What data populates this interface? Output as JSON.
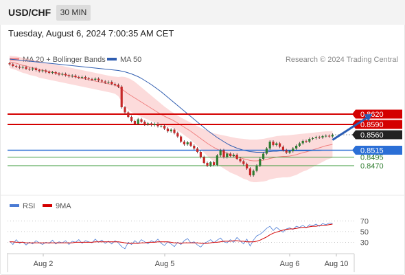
{
  "header": {
    "symbol": "USD/CHF",
    "timeframe": "30 MIN",
    "datetime": "Tuesday, August 6, 2024 7:00:35 AM CET"
  },
  "colors": {
    "resistance": "#d40000",
    "support": "#2b6fd6",
    "support_green": "#3a9a3a",
    "pivot": "#222222",
    "bollinger": "#f7a4a4",
    "ma20": "#f08080",
    "ma50": "#2f5db0",
    "rsi": "#4a7bd4",
    "rsi_ma": "#d40000",
    "candle_up": "#2e7d32",
    "candle_down": "#c62828",
    "arrow": "#2a5db4"
  },
  "chart_data": [
    {
      "type": "candlestick",
      "legend": [
        {
          "name": "MA 20 + Bollinger Bands",
          "color": "#f08080"
        },
        {
          "name": "MA 50",
          "color": "#2f5db0"
        }
      ],
      "watermark": "Research © 2024 Trading Central",
      "x_ticks": [
        "Aug 2",
        "Aug 5",
        "Aug 6",
        "Aug 10"
      ],
      "levels": [
        {
          "value": 0.862,
          "label": "0.8620",
          "kind": "resistance"
        },
        {
          "value": 0.859,
          "label": "0.8590",
          "kind": "resistance"
        },
        {
          "value": 0.856,
          "label": "0.8560",
          "kind": "pivot"
        },
        {
          "value": 0.8515,
          "label": "0.8515",
          "kind": "support"
        },
        {
          "value": 0.8495,
          "label": "0.8495",
          "kind": "support_green"
        },
        {
          "value": 0.847,
          "label": "0.8470",
          "kind": "support_green"
        }
      ],
      "ylim": [
        0.8384,
        0.8816
      ],
      "close": [
        0.8765,
        0.876,
        0.8758,
        0.8755,
        0.8757,
        0.8752,
        0.875,
        0.8753,
        0.8748,
        0.8745,
        0.8747,
        0.8743,
        0.874,
        0.8742,
        0.8738,
        0.8735,
        0.8737,
        0.8733,
        0.873,
        0.8732,
        0.8728,
        0.8726,
        0.8728,
        0.8724,
        0.8722,
        0.872,
        0.8723,
        0.8718,
        0.8715,
        0.8712,
        0.8714,
        0.8708,
        0.8705,
        0.87,
        0.864,
        0.8625,
        0.8612,
        0.86,
        0.8592,
        0.8605,
        0.8598,
        0.859,
        0.8593,
        0.8588,
        0.8592,
        0.8585,
        0.8586,
        0.8578,
        0.857,
        0.8575,
        0.8565,
        0.8555,
        0.854,
        0.8532,
        0.8538,
        0.8528,
        0.852,
        0.851,
        0.8495,
        0.8478,
        0.847,
        0.848,
        0.8472,
        0.85,
        0.8515,
        0.8495,
        0.8505,
        0.8498,
        0.8502,
        0.849,
        0.8483,
        0.8475,
        0.8462,
        0.8442,
        0.8455,
        0.847,
        0.849,
        0.8505,
        0.852,
        0.854,
        0.853,
        0.8535,
        0.8525,
        0.8515,
        0.8508,
        0.8512,
        0.852,
        0.8528,
        0.8535,
        0.8542,
        0.854,
        0.8548,
        0.855,
        0.8553,
        0.8552,
        0.8556,
        0.8557,
        0.8555,
        0.856
      ],
      "ma20": [
        0.8772,
        0.877,
        0.8768,
        0.8765,
        0.8762,
        0.876,
        0.8757,
        0.8755,
        0.8753,
        0.875,
        0.8748,
        0.8746,
        0.8744,
        0.8742,
        0.874,
        0.8738,
        0.8736,
        0.8734,
        0.8732,
        0.873,
        0.8728,
        0.8726,
        0.8724,
        0.8722,
        0.872,
        0.8718,
        0.8716,
        0.8714,
        0.8712,
        0.871,
        0.8708,
        0.8706,
        0.8704,
        0.87,
        0.8693,
        0.8686,
        0.8679,
        0.8673,
        0.8667,
        0.8661,
        0.8655,
        0.8649,
        0.8643,
        0.8637,
        0.8631,
        0.8625,
        0.8619,
        0.8614,
        0.8609,
        0.8605,
        0.86,
        0.8594,
        0.8588,
        0.8582,
        0.8576,
        0.857,
        0.8563,
        0.8556,
        0.8549,
        0.8542,
        0.8535,
        0.8529,
        0.8523,
        0.8518,
        0.8514,
        0.851,
        0.8506,
        0.8502,
        0.8499,
        0.8496,
        0.8493,
        0.849,
        0.8488,
        0.8485,
        0.8484,
        0.8484,
        0.8485,
        0.8486,
        0.8488,
        0.8491,
        0.8493,
        0.8495,
        0.8496,
        0.8497,
        0.8497,
        0.8498,
        0.85,
        0.8502,
        0.8505,
        0.8508,
        0.851,
        0.8513,
        0.8516,
        0.8519,
        0.8522,
        0.8525,
        0.8528,
        0.853,
        0.8532
      ],
      "bb_upper": [
        0.879,
        0.8789,
        0.8788,
        0.8786,
        0.8784,
        0.8782,
        0.878,
        0.8778,
        0.8776,
        0.8774,
        0.8772,
        0.877,
        0.8768,
        0.8766,
        0.8764,
        0.8762,
        0.876,
        0.8758,
        0.8756,
        0.8754,
        0.8752,
        0.875,
        0.8748,
        0.8746,
        0.8744,
        0.8742,
        0.874,
        0.8738,
        0.8736,
        0.8734,
        0.8732,
        0.873,
        0.8729,
        0.8728,
        0.8729,
        0.8728,
        0.8725,
        0.872,
        0.8714,
        0.8706,
        0.8698,
        0.869,
        0.8682,
        0.8674,
        0.8666,
        0.8658,
        0.865,
        0.8642,
        0.8635,
        0.8628,
        0.8622,
        0.8616,
        0.861,
        0.8605,
        0.86,
        0.8595,
        0.859,
        0.8585,
        0.858,
        0.8576,
        0.8572,
        0.8568,
        0.8564,
        0.8562,
        0.856,
        0.8558,
        0.8556,
        0.8554,
        0.8552,
        0.855,
        0.8549,
        0.8548,
        0.8547,
        0.8546,
        0.8546,
        0.8546,
        0.8547,
        0.8548,
        0.855,
        0.8552,
        0.8554,
        0.8556,
        0.8557,
        0.8558,
        0.8558,
        0.8559,
        0.856,
        0.8561,
        0.8562,
        0.8563,
        0.8564,
        0.8565,
        0.8566,
        0.8567,
        0.8568,
        0.8569,
        0.857,
        0.857,
        0.8571
      ],
      "bb_lower": [
        0.8754,
        0.8751,
        0.8748,
        0.8744,
        0.874,
        0.8738,
        0.8734,
        0.8732,
        0.873,
        0.8726,
        0.8724,
        0.8722,
        0.872,
        0.8718,
        0.8716,
        0.8714,
        0.8712,
        0.871,
        0.8708,
        0.8706,
        0.8704,
        0.8702,
        0.87,
        0.8698,
        0.8696,
        0.8694,
        0.8692,
        0.869,
        0.8688,
        0.8686,
        0.8684,
        0.8682,
        0.8679,
        0.8672,
        0.8657,
        0.8644,
        0.8633,
        0.8626,
        0.862,
        0.8616,
        0.8612,
        0.8608,
        0.8604,
        0.86,
        0.8596,
        0.8592,
        0.8588,
        0.8586,
        0.8583,
        0.8582,
        0.8578,
        0.8572,
        0.8566,
        0.8559,
        0.8552,
        0.8545,
        0.8536,
        0.8527,
        0.8518,
        0.8508,
        0.8498,
        0.849,
        0.8482,
        0.8474,
        0.8468,
        0.8462,
        0.8456,
        0.845,
        0.8446,
        0.8442,
        0.8437,
        0.8432,
        0.8429,
        0.8424,
        0.8422,
        0.8422,
        0.8423,
        0.8424,
        0.8426,
        0.843,
        0.8432,
        0.8434,
        0.8435,
        0.8436,
        0.8436,
        0.8437,
        0.844,
        0.8443,
        0.8448,
        0.8453,
        0.8456,
        0.8461,
        0.8466,
        0.8471,
        0.8476,
        0.8481,
        0.8486,
        0.849,
        0.8493
      ],
      "ma50": [
        0.878,
        0.8779,
        0.8778,
        0.8777,
        0.8776,
        0.8775,
        0.8774,
        0.8773,
        0.8772,
        0.8771,
        0.877,
        0.8769,
        0.8768,
        0.8767,
        0.8766,
        0.8765,
        0.8764,
        0.8763,
        0.8762,
        0.8761,
        0.876,
        0.8759,
        0.8758,
        0.8757,
        0.8756,
        0.8755,
        0.8754,
        0.8753,
        0.8752,
        0.8751,
        0.875,
        0.8749,
        0.8748,
        0.8747,
        0.8745,
        0.8743,
        0.874,
        0.8737,
        0.8733,
        0.8729,
        0.8724,
        0.8718,
        0.8712,
        0.8706,
        0.8699,
        0.8692,
        0.8685,
        0.8677,
        0.8669,
        0.8661,
        0.8653,
        0.8645,
        0.8637,
        0.8629,
        0.8621,
        0.8613,
        0.8605,
        0.8597,
        0.8589,
        0.8581,
        0.8573,
        0.8566,
        0.8559,
        0.8552,
        0.8546,
        0.854,
        0.8534,
        0.8529,
        0.8525,
        0.8521,
        0.8518,
        0.8515,
        0.8513,
        0.8511,
        0.851,
        0.8509,
        0.8509,
        0.8509,
        0.851,
        0.8511,
        0.8512,
        0.8512,
        0.8513,
        0.8513,
        0.8513,
        0.8513,
        0.8513,
        0.8513,
        0.8513,
        0.8513,
        0.8513,
        0.8513,
        0.8514,
        0.8514,
        0.8514,
        0.8515,
        0.8515,
        0.8515,
        0.8515
      ],
      "arrow": {
        "from": [
          98,
          0.8545
        ],
        "to": [
          110,
          0.862
        ]
      }
    },
    {
      "type": "line",
      "legend": [
        {
          "name": "RSI",
          "color": "#4a7bd4"
        },
        {
          "name": "9MA",
          "color": "#d40000"
        }
      ],
      "yticks": [
        70,
        50,
        30
      ],
      "ylim": [
        10,
        82
      ],
      "rsi": [
        32,
        26,
        35,
        28,
        31,
        25,
        30,
        27,
        33,
        29,
        26,
        30,
        28,
        34,
        27,
        31,
        29,
        33,
        26,
        32,
        30,
        35,
        28,
        33,
        31,
        29,
        36,
        30,
        34,
        28,
        32,
        27,
        33,
        29,
        22,
        18,
        30,
        26,
        33,
        28,
        35,
        31,
        27,
        33,
        30,
        36,
        28,
        24,
        31,
        27,
        22,
        30,
        26,
        33,
        37,
        29,
        31,
        25,
        21,
        28,
        31,
        35,
        29,
        34,
        38,
        31,
        29,
        35,
        30,
        39,
        33,
        27,
        36,
        23,
        34,
        42,
        45,
        50,
        56,
        60,
        52,
        58,
        53,
        49,
        55,
        57,
        54,
        60,
        58,
        62,
        57,
        63,
        61,
        64,
        60,
        65,
        63,
        66,
        65
      ],
      "rsi_ma": [
        31,
        31,
        30,
        30,
        30,
        29,
        29,
        29,
        29,
        29,
        29,
        29,
        29,
        29,
        29,
        29,
        29,
        29,
        29,
        29,
        30,
        30,
        30,
        30,
        30,
        30,
        31,
        31,
        31,
        31,
        31,
        31,
        31,
        31,
        30,
        29,
        28,
        28,
        28,
        28,
        29,
        29,
        30,
        30,
        30,
        31,
        31,
        31,
        31,
        30,
        29,
        29,
        28,
        29,
        29,
        29,
        29,
        29,
        28,
        28,
        28,
        29,
        30,
        30,
        31,
        32,
        32,
        32,
        33,
        33,
        32,
        32,
        31,
        31,
        31,
        32,
        34,
        37,
        40,
        44,
        47,
        49,
        51,
        53,
        54,
        55,
        55,
        56,
        57,
        58,
        58,
        59,
        60,
        60,
        61,
        62,
        62,
        63,
        64
      ]
    }
  ]
}
